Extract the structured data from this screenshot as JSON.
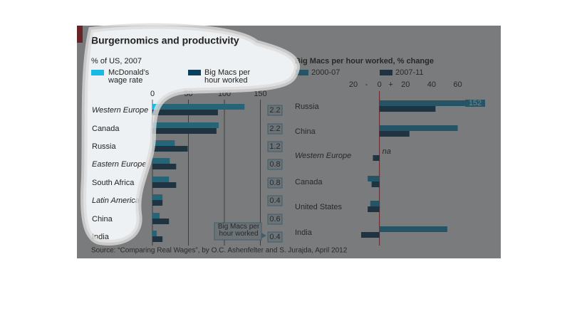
{
  "title": "Burgernomics and productivity",
  "source": "Source: “Comparing Real Wages”, by O.C. Ashenfelter and S. Jurajda, April 2012",
  "chart_data": [
    {
      "type": "bar",
      "orientation": "horizontal",
      "subtitle": "% of US, 2007",
      "categories": [
        "Western Europe",
        "Canada",
        "Russia",
        "Eastern Europe",
        "South Africa",
        "Latin America",
        "China",
        "India"
      ],
      "italic": [
        true,
        false,
        false,
        true,
        false,
        true,
        false,
        false
      ],
      "series": [
        {
          "name": "McDonald’s wage rate",
          "color": "#19b8e6",
          "values": [
            128,
            92,
            31,
            24,
            23,
            14,
            10,
            6
          ]
        },
        {
          "name": "Big Macs per hour worked",
          "color": "#0c3f5e",
          "values": [
            91,
            89,
            49,
            33,
            33,
            14,
            23,
            14
          ]
        }
      ],
      "ratios": [
        2.2,
        2.2,
        1.2,
        0.8,
        0.8,
        0.4,
        0.6,
        0.4
      ],
      "annotation": "Big Macs per hour worked",
      "xlim": [
        0,
        160
      ],
      "xticks": [
        0,
        50,
        100,
        150
      ],
      "grid": true
    },
    {
      "type": "bar",
      "orientation": "horizontal",
      "title": "Big Macs per hour worked, % change",
      "categories": [
        "Russia",
        "China",
        "Western Europe",
        "Canada",
        "United States",
        "India"
      ],
      "italic": [
        false,
        false,
        true,
        false,
        false,
        false
      ],
      "series": [
        {
          "name": "2000-07",
          "color": "#1b8fbf",
          "values": [
            152,
            60,
            null,
            -9,
            -7,
            52
          ],
          "value_labels": [
            "152",
            null,
            "na",
            null,
            null,
            null
          ]
        },
        {
          "name": "2007-11",
          "color": "#0c3f5e",
          "values": [
            43,
            23,
            -5,
            -6,
            -9,
            -14
          ]
        }
      ],
      "sign_labels": [
        "-",
        "+"
      ],
      "xlim": [
        -26,
        81
      ],
      "xticks": [
        {
          "value": -20,
          "label": "20"
        },
        0,
        20,
        40,
        60
      ]
    }
  ]
}
